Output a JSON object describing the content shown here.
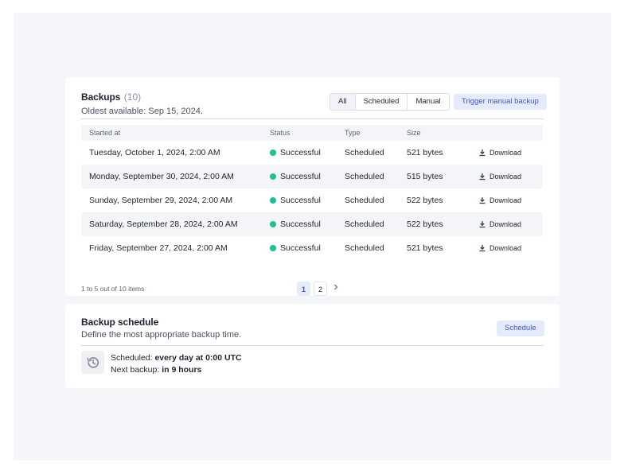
{
  "backups": {
    "title": "Backups",
    "count": "(10)",
    "subtitle": "Oldest available: Sep 15, 2024.",
    "filters": [
      "All",
      "Scheduled",
      "Manual"
    ],
    "trigger_label": "Trigger manual backup",
    "columns": [
      "Started at",
      "Status",
      "Type",
      "Size"
    ],
    "rows": [
      {
        "started": "Tuesday, October 1, 2024, 2:00 AM",
        "status": "Successful",
        "type": "Scheduled",
        "size": "521 bytes",
        "action": "Download"
      },
      {
        "started": "Monday, September 30, 2024, 2:00 AM",
        "status": "Successful",
        "type": "Scheduled",
        "size": "515 bytes",
        "action": "Download"
      },
      {
        "started": "Sunday, September 29, 2024, 2:00 AM",
        "status": "Successful",
        "type": "Scheduled",
        "size": "522 bytes",
        "action": "Download"
      },
      {
        "started": "Saturday, September 28, 2024, 2:00 AM",
        "status": "Successful",
        "type": "Scheduled",
        "size": "522 bytes",
        "action": "Download"
      },
      {
        "started": "Friday, September 27, 2024, 2:00 AM",
        "status": "Successful",
        "type": "Scheduled",
        "size": "521 bytes",
        "action": "Download"
      }
    ],
    "pagination_text": "1 to 5 out of 10 items",
    "pages": [
      "1",
      "2"
    ],
    "next_icon": "chevron-right-icon",
    "status_color": "#1fbf95"
  },
  "schedule": {
    "title": "Backup schedule",
    "subtitle": "Define the most appropriate backup time.",
    "button_label": "Schedule",
    "scheduled_label": "Scheduled: ",
    "scheduled_value": "every day at 0:00 UTC",
    "next_label": "Next backup: ",
    "next_value": "in 9 hours",
    "icon": "history-icon"
  },
  "colors": {
    "accent": "#3c57c8",
    "accent_bg": "#e6ebfb",
    "page_bg": "#f4f6fa"
  }
}
